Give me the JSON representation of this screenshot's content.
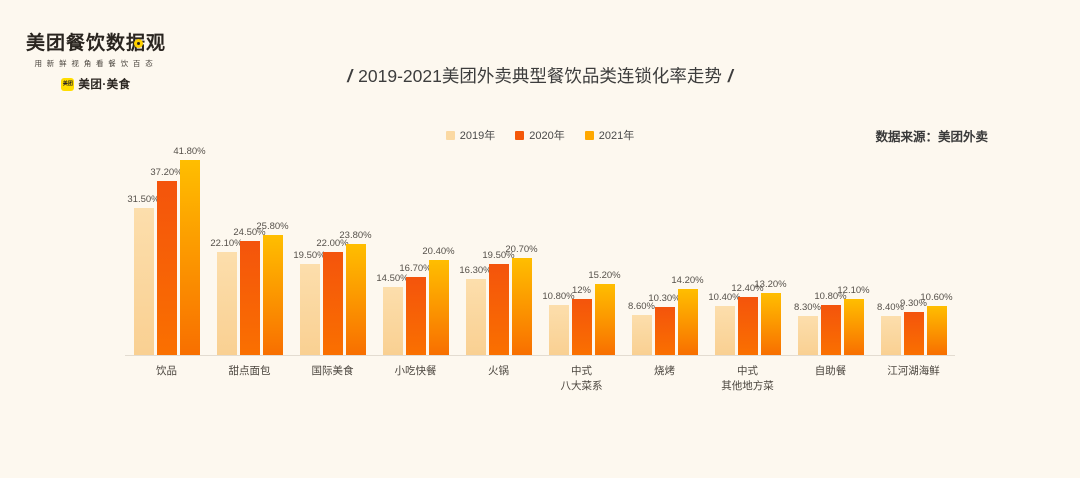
{
  "page": {
    "background": "#FDF8EF"
  },
  "brand": {
    "logo_title": "美团餐饮数据观",
    "tagline": "用新鲜视角看餐饮百态",
    "badge_text": "美团",
    "badge_label": "美团·美食",
    "accent_color": "#FFD100"
  },
  "title": {
    "open": "/",
    "text": "2019-2021美团外卖典型餐饮品类连锁化率走势",
    "close": "/"
  },
  "source_note": "数据来源：美团外卖",
  "legend": [
    {
      "label": "2019年",
      "color": "#FBD9A2"
    },
    {
      "label": "2020年",
      "color": "#F45708"
    },
    {
      "label": "2021年",
      "color": "#FFA800"
    }
  ],
  "chart_data": {
    "type": "bar",
    "title": "2019-2021美团外卖典型餐饮品类连锁化率走势",
    "unit": "%",
    "grid": false,
    "legend_position": "top-center",
    "ylim": [
      0,
      45
    ],
    "categories": [
      [
        "饮品"
      ],
      [
        "甜点面包"
      ],
      [
        "国际美食"
      ],
      [
        "小吃快餐"
      ],
      [
        "火锅"
      ],
      [
        "中式",
        "八大菜系"
      ],
      [
        "烧烤"
      ],
      [
        "中式",
        "其他地方菜"
      ],
      [
        "自助餐"
      ],
      [
        "江河湖海鲜"
      ]
    ],
    "series": [
      {
        "name": "2019年",
        "color_top": "#FCDEAC",
        "color_bottom": "#F9D092",
        "values": [
          31.5,
          22.1,
          19.5,
          14.5,
          16.3,
          10.8,
          8.6,
          10.4,
          8.3,
          8.4
        ],
        "labels": [
          "31.50%",
          "22.10%",
          "19.50%",
          "14.50%",
          "16.30%",
          "10.80%",
          "8.60%",
          "10.40%",
          "8.30%",
          "8.40%"
        ]
      },
      {
        "name": "2020年",
        "color_top": "#F4540C",
        "color_bottom": "#FA7000",
        "values": [
          37.2,
          24.5,
          22.0,
          16.7,
          19.5,
          12.0,
          10.3,
          12.4,
          10.8,
          9.3
        ],
        "labels": [
          "37.20%",
          "24.50%",
          "22.00%",
          "16.70%",
          "19.50%",
          "12%",
          "10.30%",
          "12.40%",
          "10.80%",
          "9.30%"
        ]
      },
      {
        "name": "2021年",
        "color_top": "#FFBE00",
        "color_bottom": "#F86F00",
        "values": [
          41.8,
          25.8,
          23.8,
          20.4,
          20.7,
          15.2,
          14.2,
          13.2,
          12.1,
          10.6
        ],
        "labels": [
          "41.80%",
          "25.80%",
          "23.80%",
          "20.40%",
          "20.70%",
          "15.20%",
          "14.20%",
          "13.20%",
          "12.10%",
          "10.60%"
        ]
      }
    ]
  }
}
